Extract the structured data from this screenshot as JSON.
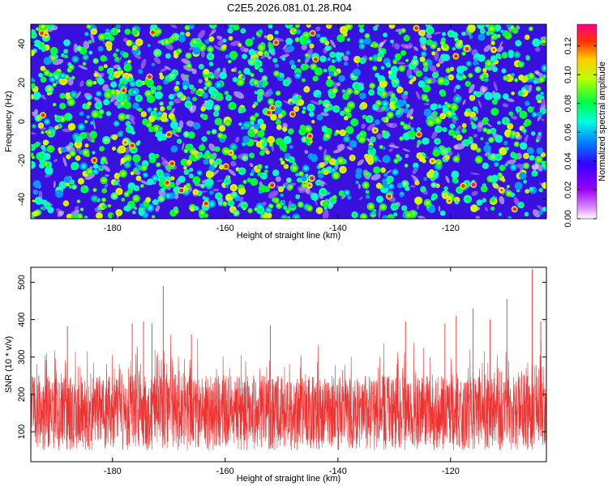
{
  "title": "C2E5.2026.081.01.28.R04",
  "colors": {
    "line": "#ee3333",
    "axis": "#000000",
    "colormap": [
      "#ffffff",
      "#9900ff",
      "#3300ff",
      "#0099ff",
      "#00ffcc",
      "#00ff33",
      "#ccff00",
      "#ffcc00",
      "#ff3300",
      "#ff0099"
    ]
  },
  "chart_data": [
    {
      "type": "heatmap",
      "xlabel": "Height of straight line (km)",
      "ylabel": "Frequency (Hz)",
      "xlim": [
        -194.5,
        -103
      ],
      "ylim": [
        -50,
        50
      ],
      "xticks": [
        -180,
        -160,
        -140,
        -120
      ],
      "yticks": [
        -40,
        -20,
        0,
        20,
        40
      ],
      "colorbar": {
        "label": "Normalized spectral amplitude",
        "range": [
          0,
          0.135
        ],
        "ticks": [
          "0.00",
          "0.02",
          "0.04",
          "0.06",
          "0.08",
          "0.10",
          "0.12"
        ],
        "tick_values": [
          0,
          0.02,
          0.04,
          0.06,
          0.08,
          0.1,
          0.12
        ]
      },
      "description": "dense noise-like spectrum of small blobs, mostly 0.03-0.06 with scattered peaks up to ~0.13"
    },
    {
      "type": "line",
      "xlabel": "Height of straight line (km)",
      "ylabel": "SNR (10 * v/v)",
      "xlim": [
        -194.5,
        -103
      ],
      "ylim": [
        20,
        540
      ],
      "xticks": [
        -180,
        -160,
        -140,
        -120
      ],
      "yticks": [
        100,
        200,
        300,
        400,
        500
      ],
      "series": [
        {
          "name": "SNR",
          "baseline_range": [
            50,
            250
          ],
          "peaks": [
            {
              "x": -171,
              "y": 490
            },
            {
              "x": -105.5,
              "y": 535
            },
            {
              "x": -110,
              "y": 455
            },
            {
              "x": -188,
              "y": 382
            },
            {
              "x": -176.5,
              "y": 390
            },
            {
              "x": -174.5,
              "y": 395
            },
            {
              "x": -173,
              "y": 390
            },
            {
              "x": -152,
              "y": 385
            },
            {
              "x": -128,
              "y": 395
            },
            {
              "x": -121,
              "y": 390
            },
            {
              "x": -116,
              "y": 430
            },
            {
              "x": -104,
              "y": 395
            },
            {
              "x": -119,
              "y": 410
            },
            {
              "x": -113,
              "y": 400
            },
            {
              "x": -166,
              "y": 360
            }
          ]
        }
      ]
    }
  ]
}
